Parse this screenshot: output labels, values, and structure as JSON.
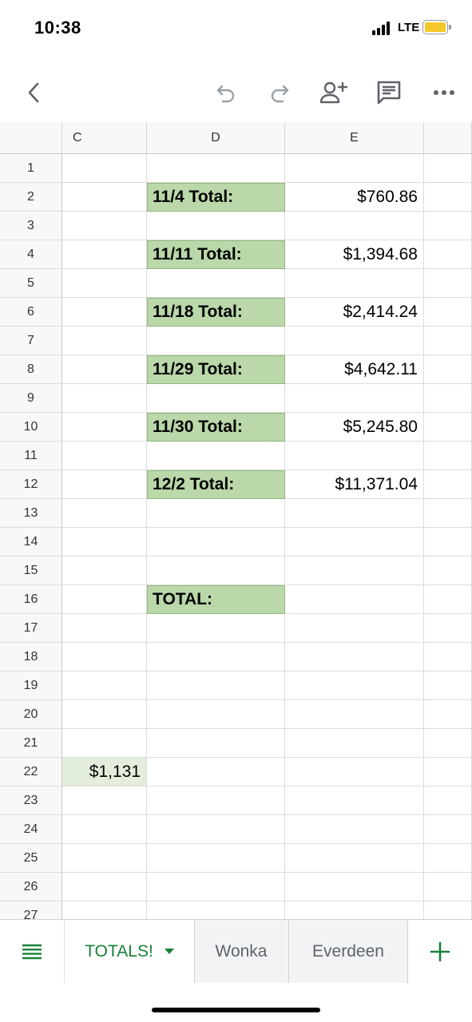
{
  "status": {
    "time": "10:38",
    "network": "LTE",
    "battery_color": "#f5c829"
  },
  "toolbar": {
    "icons": [
      "back-icon",
      "undo-icon",
      "redo-icon",
      "share-person-add-icon",
      "comment-icon",
      "more-icon"
    ]
  },
  "grid": {
    "columns": [
      "C",
      "D",
      "E"
    ],
    "rows": [
      "1",
      "2",
      "3",
      "4",
      "5",
      "6",
      "7",
      "8",
      "9",
      "10",
      "11",
      "12",
      "13",
      "14",
      "15",
      "16",
      "17",
      "18",
      "19",
      "20",
      "21",
      "22",
      "23",
      "24",
      "25",
      "26",
      "27"
    ],
    "labels": {
      "r2": "11/4 Total:",
      "r4": "11/11 Total:",
      "r6": "11/18 Total:",
      "r8": "11/29 Total:",
      "r10": "11/30 Total:",
      "r12": "12/2 Total:",
      "r16": "TOTAL:"
    },
    "values": {
      "r2": "$760.86",
      "r4": "$1,394.68",
      "r6": "$2,414.24",
      "r8": "$4,642.11",
      "r10": "$5,245.80",
      "r12": "$11,371.04"
    },
    "c22": "$1,131",
    "label_fill": "#bad8a9",
    "highlight_fill": "#e2eedb"
  },
  "tabs": {
    "active": "TOTALS!",
    "sheets": [
      "Wonka",
      "Everdeen"
    ],
    "accent": "#188038"
  }
}
